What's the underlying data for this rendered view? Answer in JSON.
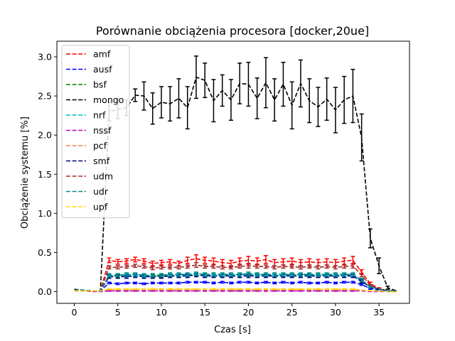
{
  "chart_data": {
    "type": "line",
    "title": "Porównanie obciążenia procesora [docker,20ue]",
    "xlabel": "Czas [s]",
    "ylabel": "Obciążenie systemu [%]",
    "xlim": [
      -2,
      38.5
    ],
    "ylim": [
      -0.15,
      3.2
    ],
    "xticks": [
      0,
      5,
      10,
      15,
      20,
      25,
      30,
      35
    ],
    "yticks": [
      0.0,
      0.5,
      1.0,
      1.5,
      2.0,
      2.5,
      3.0
    ],
    "ytick_labels": [
      "0.0",
      "0.5",
      "1.0",
      "1.5",
      "2.0",
      "2.5",
      "3.0"
    ],
    "grid": false,
    "legend_position": "top-left",
    "x": [
      0,
      1,
      2,
      3,
      4,
      5,
      6,
      7,
      8,
      9,
      10,
      11,
      12,
      13,
      14,
      15,
      16,
      17,
      18,
      19,
      20,
      21,
      22,
      23,
      24,
      25,
      26,
      27,
      28,
      29,
      30,
      31,
      32,
      33,
      34,
      35,
      36,
      37
    ],
    "series": [
      {
        "name": "amf",
        "color": "#ff0000",
        "values": [
          0.02,
          0.02,
          0.01,
          0.01,
          0.4,
          0.38,
          0.39,
          0.41,
          0.39,
          0.36,
          0.37,
          0.38,
          0.36,
          0.4,
          0.42,
          0.4,
          0.39,
          0.37,
          0.36,
          0.39,
          0.4,
          0.39,
          0.41,
          0.37,
          0.38,
          0.39,
          0.37,
          0.38,
          0.37,
          0.38,
          0.37,
          0.39,
          0.4,
          0.25,
          0.1,
          0.04,
          0.01,
          0.01
        ],
        "errors": [
          0,
          0,
          0,
          0,
          0.03,
          0.03,
          0.03,
          0.03,
          0.03,
          0.03,
          0.03,
          0.03,
          0.03,
          0.04,
          0.05,
          0.04,
          0.04,
          0.04,
          0.04,
          0.04,
          0.05,
          0.04,
          0.05,
          0.04,
          0.04,
          0.04,
          0.04,
          0.04,
          0.04,
          0.04,
          0.04,
          0.04,
          0.05,
          0.03,
          0.02,
          0.01,
          0,
          0
        ]
      },
      {
        "name": "ausf",
        "color": "#0000ff",
        "values": [
          0.01,
          0.01,
          0.01,
          0.01,
          0.11,
          0.1,
          0.11,
          0.11,
          0.1,
          0.11,
          0.11,
          0.11,
          0.11,
          0.12,
          0.12,
          0.12,
          0.11,
          0.12,
          0.11,
          0.12,
          0.12,
          0.11,
          0.12,
          0.11,
          0.12,
          0.11,
          0.12,
          0.11,
          0.11,
          0.12,
          0.11,
          0.12,
          0.12,
          0.09,
          0.04,
          0.02,
          0.01,
          0.01
        ],
        "errors": [
          0,
          0,
          0,
          0,
          0.01,
          0.01,
          0.01,
          0.01,
          0.01,
          0.01,
          0.01,
          0.01,
          0.01,
          0.01,
          0.01,
          0.01,
          0.01,
          0.01,
          0.01,
          0.01,
          0.01,
          0.01,
          0.01,
          0.01,
          0.01,
          0.01,
          0.01,
          0.01,
          0.01,
          0.01,
          0.01,
          0.01,
          0.01,
          0.01,
          0.01,
          0,
          0,
          0
        ]
      },
      {
        "name": "bsf",
        "color": "#008000",
        "values": [
          0.02,
          0.02,
          0.01,
          0.01,
          0.2,
          0.2,
          0.21,
          0.21,
          0.2,
          0.2,
          0.2,
          0.21,
          0.21,
          0.21,
          0.22,
          0.21,
          0.21,
          0.21,
          0.21,
          0.21,
          0.22,
          0.21,
          0.21,
          0.21,
          0.21,
          0.21,
          0.21,
          0.21,
          0.21,
          0.21,
          0.21,
          0.21,
          0.21,
          0.14,
          0.06,
          0.03,
          0.01,
          0.01
        ],
        "errors": [
          0,
          0,
          0,
          0,
          0.02,
          0.02,
          0.02,
          0.02,
          0.02,
          0.02,
          0.02,
          0.02,
          0.02,
          0.02,
          0.02,
          0.02,
          0.02,
          0.02,
          0.02,
          0.02,
          0.02,
          0.02,
          0.02,
          0.02,
          0.02,
          0.02,
          0.02,
          0.02,
          0.02,
          0.02,
          0.02,
          0.02,
          0.02,
          0.02,
          0.01,
          0,
          0,
          0
        ]
      },
      {
        "name": "mongo",
        "color": "#000000",
        "values": [
          0.03,
          0.02,
          0.01,
          0.01,
          2.3,
          2.33,
          2.35,
          2.51,
          2.5,
          2.34,
          2.42,
          2.4,
          2.47,
          2.35,
          2.74,
          2.7,
          2.44,
          2.57,
          2.45,
          2.66,
          2.65,
          2.47,
          2.67,
          2.45,
          2.65,
          2.38,
          2.66,
          2.44,
          2.36,
          2.46,
          2.32,
          2.45,
          2.5,
          1.97,
          0.68,
          0.33,
          0.05,
          0.01
        ],
        "errors": [
          0,
          0,
          0,
          0,
          0.12,
          0.12,
          0.1,
          0.08,
          0.18,
          0.2,
          0.2,
          0.22,
          0.25,
          0.27,
          0.27,
          0.22,
          0.27,
          0.2,
          0.26,
          0.26,
          0.28,
          0.26,
          0.32,
          0.27,
          0.28,
          0.3,
          0.3,
          0.28,
          0.25,
          0.27,
          0.29,
          0.3,
          0.34,
          0.3,
          0.12,
          0.1,
          0.02,
          0
        ]
      },
      {
        "name": "nrf",
        "color": "#00bfbf",
        "values": [
          0.02,
          0.02,
          0.01,
          0.01,
          0.2,
          0.21,
          0.21,
          0.21,
          0.2,
          0.21,
          0.21,
          0.21,
          0.21,
          0.21,
          0.22,
          0.21,
          0.21,
          0.21,
          0.21,
          0.21,
          0.22,
          0.21,
          0.21,
          0.21,
          0.21,
          0.21,
          0.21,
          0.21,
          0.21,
          0.21,
          0.21,
          0.21,
          0.21,
          0.14,
          0.06,
          0.03,
          0.01,
          0.01
        ],
        "errors": [
          0,
          0,
          0,
          0,
          0.02,
          0.02,
          0.02,
          0.02,
          0.02,
          0.02,
          0.02,
          0.02,
          0.02,
          0.02,
          0.02,
          0.02,
          0.02,
          0.02,
          0.02,
          0.02,
          0.02,
          0.02,
          0.02,
          0.02,
          0.02,
          0.02,
          0.02,
          0.02,
          0.02,
          0.02,
          0.02,
          0.02,
          0.02,
          0.02,
          0.01,
          0,
          0,
          0
        ]
      },
      {
        "name": "nssf",
        "color": "#bf00bf",
        "values": [
          0.01,
          0.01,
          0.0,
          0.0,
          0.01,
          0.01,
          0.01,
          0.01,
          0.01,
          0.01,
          0.01,
          0.01,
          0.01,
          0.01,
          0.01,
          0.01,
          0.01,
          0.01,
          0.01,
          0.01,
          0.01,
          0.01,
          0.01,
          0.01,
          0.01,
          0.01,
          0.01,
          0.01,
          0.01,
          0.01,
          0.01,
          0.01,
          0.01,
          0.01,
          0.0,
          0.0,
          0.0,
          0.0
        ],
        "errors": [
          0,
          0,
          0,
          0,
          0.005,
          0.005,
          0.005,
          0.005,
          0.005,
          0.005,
          0.005,
          0.005,
          0.005,
          0.005,
          0.005,
          0.005,
          0.005,
          0.005,
          0.005,
          0.005,
          0.005,
          0.005,
          0.005,
          0.005,
          0.005,
          0.005,
          0.005,
          0.005,
          0.005,
          0.005,
          0.005,
          0.005,
          0.005,
          0,
          0,
          0,
          0,
          0
        ]
      },
      {
        "name": "pcf",
        "color": "#ff7f3f",
        "values": [
          0.01,
          0.01,
          0.01,
          0.01,
          0.03,
          0.03,
          0.03,
          0.03,
          0.03,
          0.03,
          0.03,
          0.03,
          0.03,
          0.03,
          0.03,
          0.03,
          0.03,
          0.03,
          0.03,
          0.03,
          0.03,
          0.03,
          0.03,
          0.03,
          0.03,
          0.03,
          0.03,
          0.03,
          0.03,
          0.03,
          0.03,
          0.03,
          0.03,
          0.02,
          0.01,
          0.01,
          0.0,
          0.0
        ],
        "errors": [
          0,
          0,
          0,
          0,
          0.005,
          0.005,
          0.005,
          0.005,
          0.005,
          0.005,
          0.005,
          0.005,
          0.005,
          0.005,
          0.005,
          0.005,
          0.005,
          0.005,
          0.005,
          0.005,
          0.005,
          0.005,
          0.005,
          0.005,
          0.005,
          0.005,
          0.005,
          0.005,
          0.005,
          0.005,
          0.005,
          0.005,
          0.005,
          0,
          0,
          0,
          0,
          0
        ]
      },
      {
        "name": "smf",
        "color": "#00007f",
        "values": [
          0.02,
          0.02,
          0.01,
          0.01,
          0.19,
          0.19,
          0.19,
          0.2,
          0.19,
          0.19,
          0.19,
          0.2,
          0.2,
          0.2,
          0.21,
          0.2,
          0.2,
          0.2,
          0.2,
          0.2,
          0.2,
          0.2,
          0.2,
          0.2,
          0.2,
          0.2,
          0.2,
          0.2,
          0.2,
          0.2,
          0.2,
          0.2,
          0.2,
          0.13,
          0.06,
          0.03,
          0.01,
          0.01
        ],
        "errors": [
          0,
          0,
          0,
          0,
          0.02,
          0.02,
          0.02,
          0.02,
          0.02,
          0.02,
          0.02,
          0.02,
          0.02,
          0.02,
          0.02,
          0.02,
          0.02,
          0.02,
          0.02,
          0.02,
          0.02,
          0.02,
          0.02,
          0.02,
          0.02,
          0.02,
          0.02,
          0.02,
          0.02,
          0.02,
          0.02,
          0.02,
          0.02,
          0.02,
          0.01,
          0,
          0,
          0
        ]
      },
      {
        "name": "udm",
        "color": "#a52a2a",
        "values": [
          0.02,
          0.02,
          0.01,
          0.01,
          0.31,
          0.31,
          0.32,
          0.33,
          0.32,
          0.3,
          0.31,
          0.31,
          0.31,
          0.32,
          0.34,
          0.32,
          0.32,
          0.31,
          0.31,
          0.32,
          0.33,
          0.32,
          0.32,
          0.31,
          0.32,
          0.32,
          0.31,
          0.32,
          0.31,
          0.32,
          0.31,
          0.32,
          0.33,
          0.21,
          0.08,
          0.04,
          0.01,
          0.01
        ],
        "errors": [
          0,
          0,
          0,
          0,
          0.02,
          0.02,
          0.02,
          0.02,
          0.02,
          0.02,
          0.02,
          0.02,
          0.02,
          0.02,
          0.03,
          0.02,
          0.02,
          0.02,
          0.02,
          0.02,
          0.03,
          0.02,
          0.02,
          0.02,
          0.02,
          0.02,
          0.02,
          0.02,
          0.02,
          0.02,
          0.02,
          0.02,
          0.03,
          0.02,
          0.01,
          0,
          0,
          0
        ]
      },
      {
        "name": "udr",
        "color": "#008b8b",
        "values": [
          0.02,
          0.02,
          0.01,
          0.01,
          0.21,
          0.21,
          0.22,
          0.22,
          0.21,
          0.21,
          0.21,
          0.22,
          0.22,
          0.22,
          0.23,
          0.22,
          0.22,
          0.22,
          0.22,
          0.22,
          0.23,
          0.22,
          0.22,
          0.22,
          0.22,
          0.22,
          0.22,
          0.22,
          0.22,
          0.22,
          0.22,
          0.22,
          0.22,
          0.15,
          0.06,
          0.03,
          0.01,
          0.01
        ],
        "errors": [
          0,
          0,
          0,
          0,
          0.02,
          0.02,
          0.02,
          0.02,
          0.02,
          0.02,
          0.02,
          0.02,
          0.02,
          0.02,
          0.02,
          0.02,
          0.02,
          0.02,
          0.02,
          0.02,
          0.02,
          0.02,
          0.02,
          0.02,
          0.02,
          0.02,
          0.02,
          0.02,
          0.02,
          0.02,
          0.02,
          0.02,
          0.02,
          0.02,
          0.01,
          0,
          0,
          0
        ]
      },
      {
        "name": "upf",
        "color": "#ffd700",
        "values": [
          0.01,
          0.01,
          0.01,
          0.01,
          0.03,
          0.03,
          0.03,
          0.03,
          0.03,
          0.03,
          0.03,
          0.03,
          0.03,
          0.03,
          0.03,
          0.03,
          0.03,
          0.03,
          0.03,
          0.03,
          0.03,
          0.03,
          0.03,
          0.03,
          0.03,
          0.03,
          0.03,
          0.03,
          0.03,
          0.03,
          0.03,
          0.03,
          0.03,
          0.02,
          0.01,
          0.01,
          0.0,
          0.0
        ],
        "errors": [
          0,
          0,
          0,
          0,
          0.005,
          0.005,
          0.005,
          0.005,
          0.005,
          0.005,
          0.005,
          0.005,
          0.005,
          0.005,
          0.005,
          0.005,
          0.005,
          0.005,
          0.005,
          0.005,
          0.005,
          0.005,
          0.005,
          0.005,
          0.005,
          0.005,
          0.005,
          0.005,
          0.005,
          0.005,
          0.005,
          0.005,
          0.005,
          0,
          0,
          0,
          0,
          0
        ]
      }
    ]
  }
}
